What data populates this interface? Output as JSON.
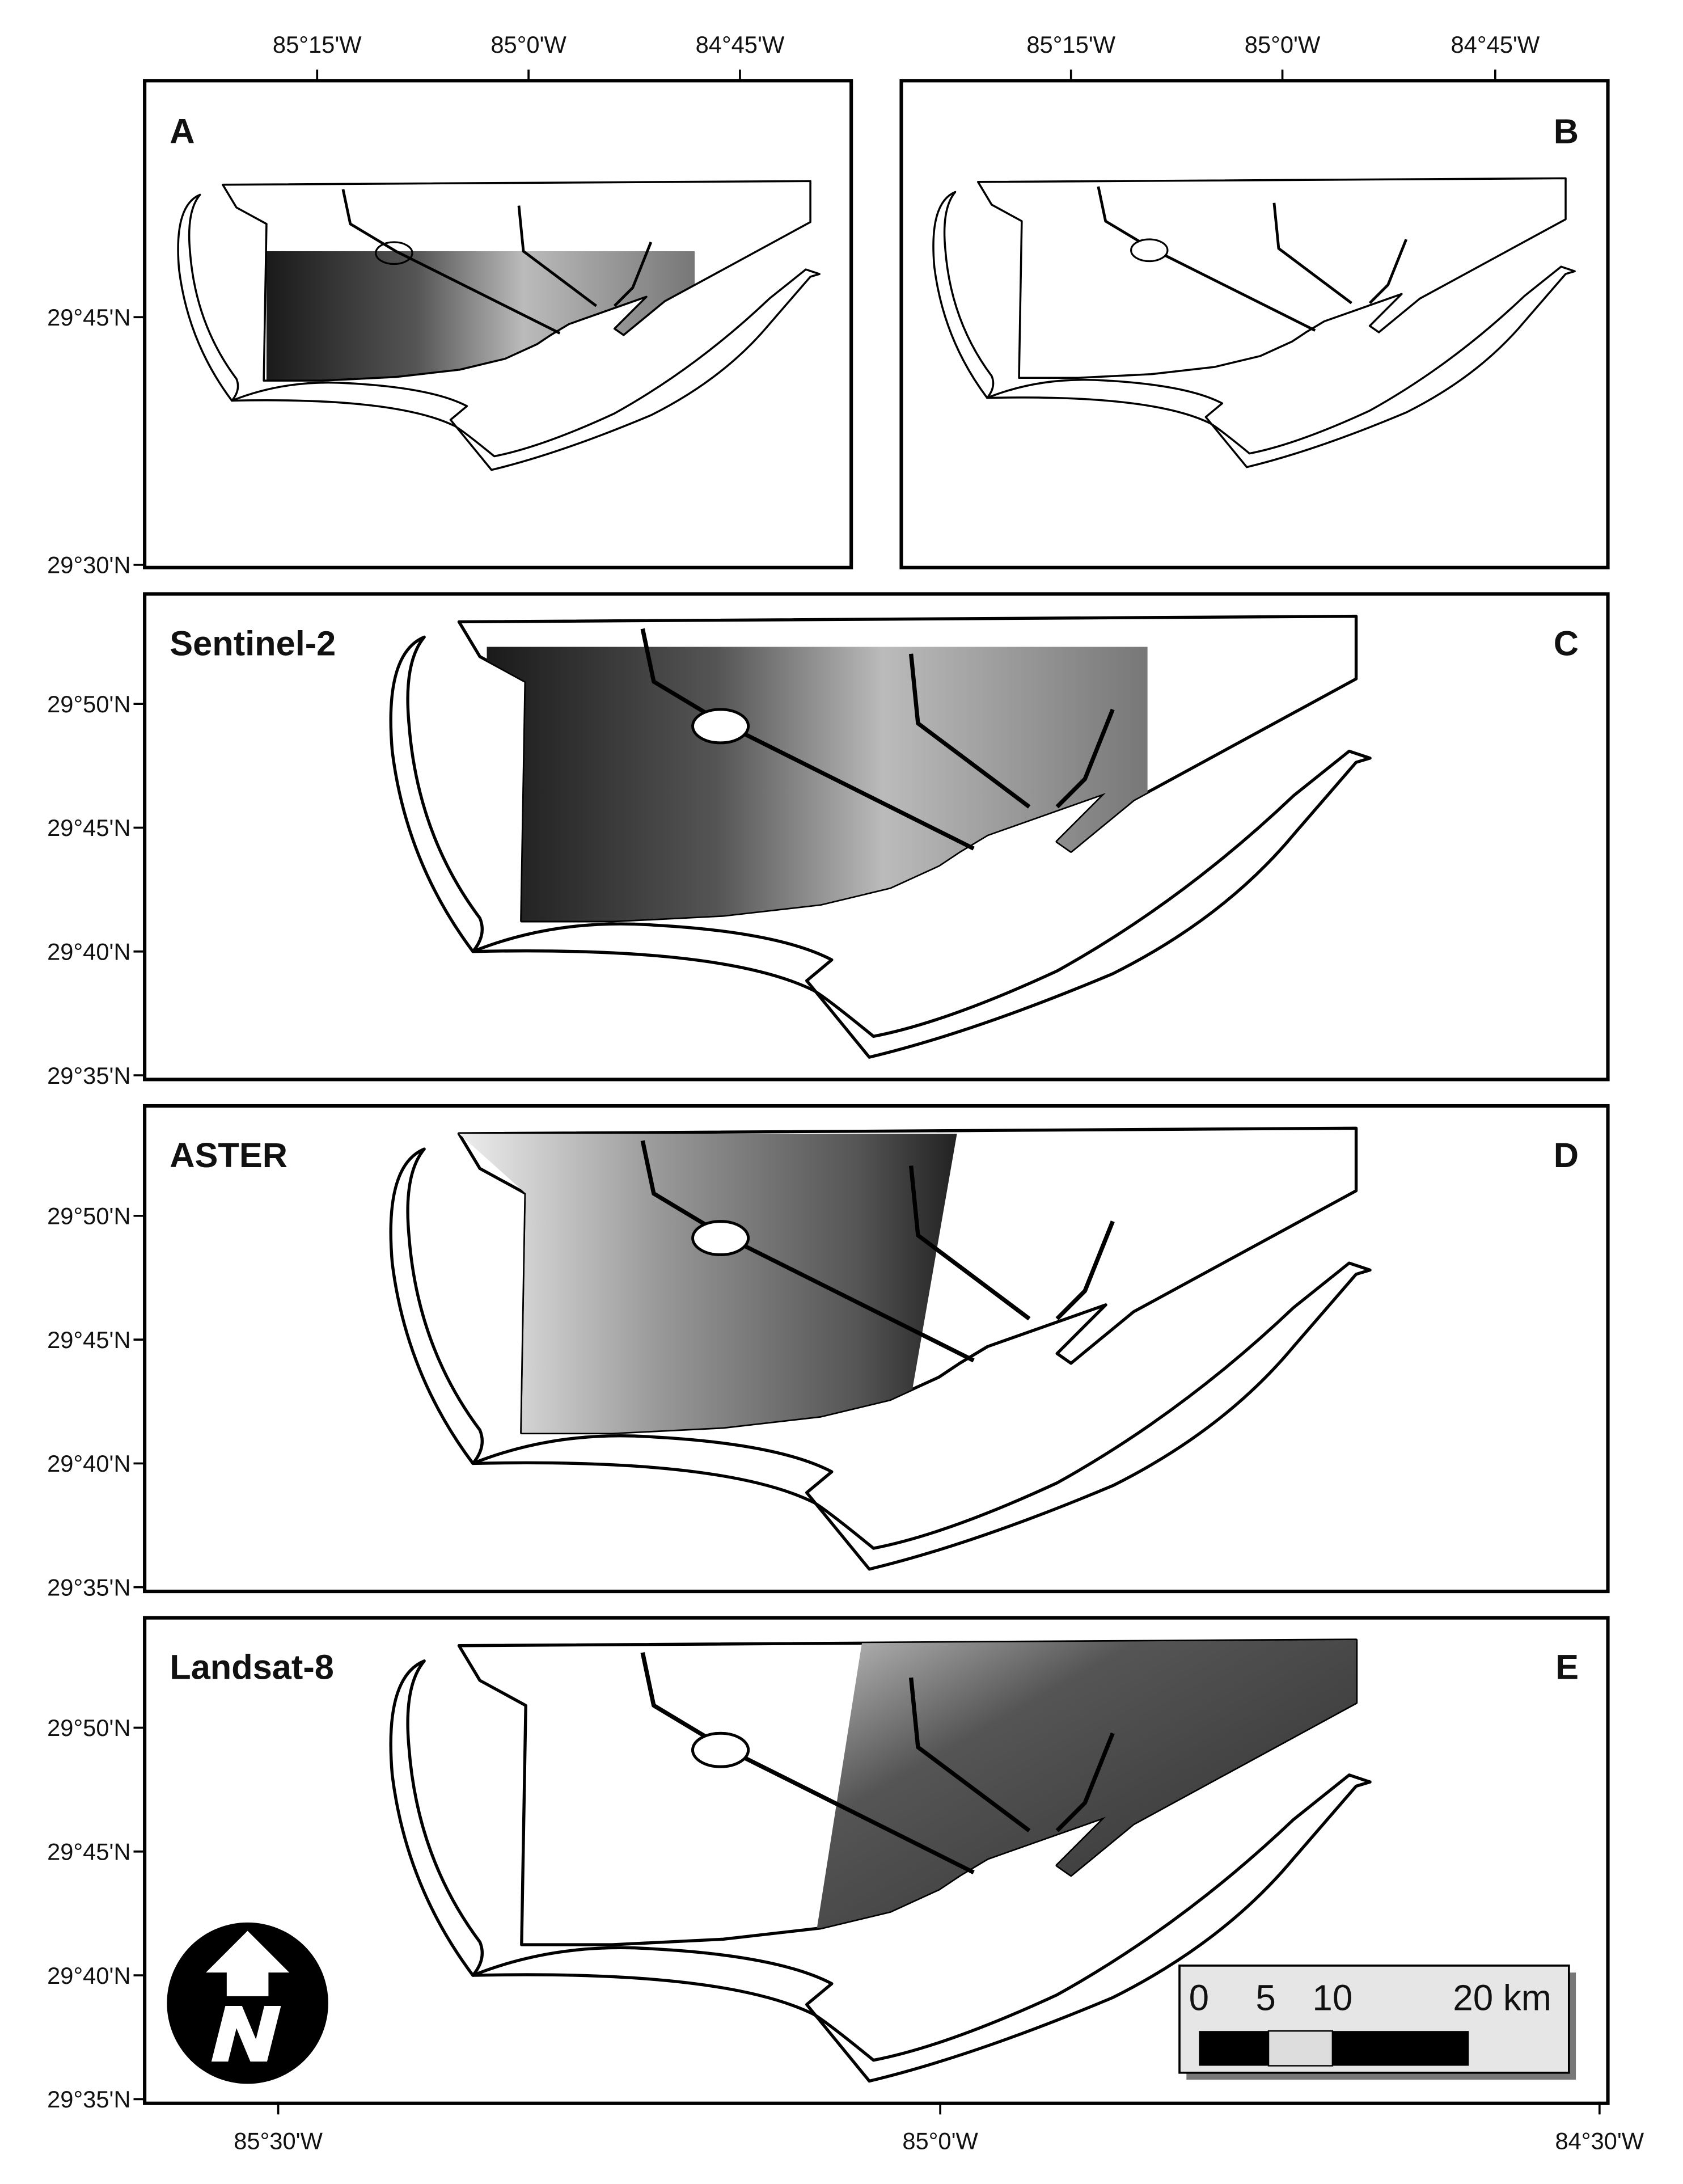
{
  "panels": [
    {
      "label": "A",
      "x_ticks": [
        "85°15'W",
        "85°0'W",
        "84°45'W"
      ],
      "y_ticks": [
        "29°45'N",
        "29°30'N"
      ]
    },
    {
      "label": "B",
      "x_ticks": [
        "85°15'W",
        "85°0'W",
        "84°45'W"
      ]
    },
    {
      "label": "C",
      "sensor": "Sentinel-2",
      "y_ticks": [
        "29°50'N",
        "29°45'N",
        "29°40'N",
        "29°35'N"
      ]
    },
    {
      "label": "D",
      "sensor": "ASTER",
      "y_ticks": [
        "29°50'N",
        "29°45'N",
        "29°40'N",
        "29°35'N"
      ]
    },
    {
      "label": "E",
      "sensor": "Landsat-8",
      "y_ticks": [
        "29°50'N",
        "29°45'N",
        "29°40'N",
        "29°35'N"
      ],
      "x_ticks": [
        "85°30'W",
        "85°0'W",
        "84°30'W"
      ]
    }
  ],
  "scale_bar": {
    "labels": [
      "0",
      "5",
      "10",
      "20 km"
    ]
  }
}
